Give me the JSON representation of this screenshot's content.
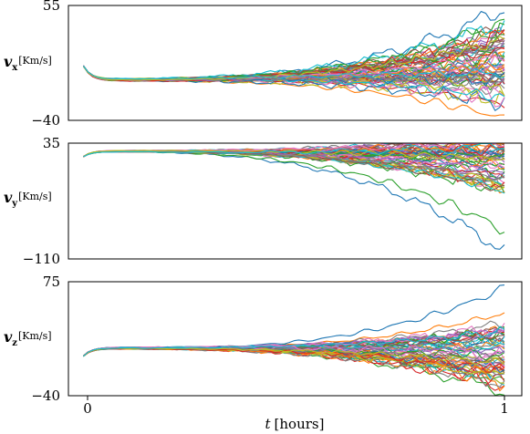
{
  "chart_data": [
    {
      "type": "line",
      "ylabel": {
        "symbol": "v",
        "subscript": "x",
        "unit": "[Km/s]"
      },
      "ylim": [
        -40,
        55
      ],
      "y_ticks": [
        "55",
        "−40"
      ],
      "x_range": [
        0,
        1
      ],
      "start": 5.0,
      "settle": -6.5,
      "drift": 14,
      "spread_end": 32,
      "n_series": 60,
      "seed": 11,
      "extremes": [
        54,
        -36,
        43,
        -28
      ]
    },
    {
      "type": "line",
      "ylabel": {
        "symbol": "v",
        "subscript": "y",
        "unit": "[Km/s]"
      },
      "ylim": [
        -110,
        35
      ],
      "y_ticks": [
        "35",
        "−110"
      ],
      "x_range": [
        0,
        1
      ],
      "start": 18.0,
      "settle": 25.0,
      "drift": -14,
      "spread_end": 38,
      "n_series": 60,
      "seed": 23,
      "extremes": [
        -100,
        33,
        -72,
        30
      ]
    },
    {
      "type": "line",
      "ylabel": {
        "symbol": "v",
        "subscript": "z",
        "unit": "[Km/s]"
      },
      "ylim": [
        -40,
        75
      ],
      "y_ticks": [
        "75",
        "−40"
      ],
      "x_range": [
        0,
        1
      ],
      "start": 0.0,
      "settle": 8.0,
      "drift": -6,
      "spread_end": 30,
      "n_series": 60,
      "seed": 37,
      "extremes": [
        70,
        45,
        -38,
        -30
      ]
    }
  ],
  "x_axis": {
    "ticks": [
      "0",
      "1"
    ],
    "label_var": "t",
    "label_unit": "[hours]"
  },
  "colors": [
    "#1f77b4",
    "#ff7f0e",
    "#2ca02c",
    "#d62728",
    "#9467bd",
    "#8c564b",
    "#e377c2",
    "#7f7f7f",
    "#bcbd22",
    "#17becf"
  ]
}
